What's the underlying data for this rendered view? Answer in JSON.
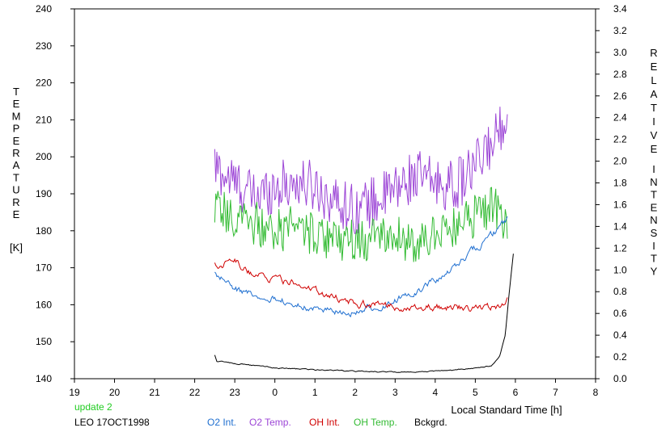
{
  "chart_data": {
    "type": "line",
    "xlabel": "Local Standard Time [h]",
    "ylabel_left": [
      "T",
      "E",
      "M",
      "P",
      "E",
      "R",
      "A",
      "T",
      "U",
      "R",
      "E"
    ],
    "ylabel_left_unit": "[K]",
    "ylabel_right_line1": [
      "R",
      "E",
      "L",
      "A",
      "T",
      "I",
      "V",
      "E"
    ],
    "ylabel_right_line2": [
      "I",
      "N",
      "T",
      "E",
      "N",
      "S",
      "I",
      "T",
      "Y"
    ],
    "x_ticks": [
      "19",
      "20",
      "21",
      "22",
      "23",
      "0",
      "1",
      "2",
      "3",
      "4",
      "5",
      "6",
      "7",
      "8"
    ],
    "y_left_ticks": [
      "240",
      "230",
      "220",
      "210",
      "200",
      "190",
      "180",
      "170",
      "160",
      "150",
      "140"
    ],
    "y_right_ticks": [
      "3.4",
      "3.2",
      "3.0",
      "2.8",
      "2.6",
      "2.4",
      "2.2",
      "2.0",
      "1.8",
      "1.6",
      "1.4",
      "1.2",
      "1.0",
      "0.8",
      "0.6",
      "0.4",
      "0.2",
      "0.0"
    ],
    "ylim_left": [
      140,
      240
    ],
    "ylim_right": [
      0.0,
      3.4
    ],
    "xlim_hours_after_1900": [
      0,
      13
    ],
    "status_label": "update 2",
    "station_label": "LEO 17OCT1998",
    "colors": {
      "o2_int": "#1f6fd0",
      "o2_temp": "#9c45d6",
      "oh_int": "#d00000",
      "oh_temp": "#33bb33",
      "bckgrd": "#000000",
      "status": "#22cc22"
    },
    "series": [
      {
        "name": "O2 Temp.",
        "axis": "left",
        "color": "#9c45d6",
        "x": [
          3.5,
          4.0,
          4.5,
          5.0,
          5.5,
          6.0,
          6.5,
          7.0,
          7.5,
          8.0,
          8.5,
          9.0,
          9.5,
          10.0,
          10.5,
          10.8
        ],
        "y": [
          197,
          193,
          189,
          192,
          193,
          192,
          188,
          186,
          188,
          191,
          195,
          193,
          192,
          197,
          205,
          213
        ],
        "amplitude": 7
      },
      {
        "name": "OH Temp.",
        "axis": "left",
        "color": "#33bb33",
        "x": [
          3.5,
          4.0,
          4.5,
          5.0,
          5.5,
          6.0,
          6.5,
          7.0,
          7.5,
          8.0,
          8.5,
          9.0,
          9.5,
          10.0,
          10.5,
          10.8
        ],
        "y": [
          186,
          183,
          182,
          180,
          181,
          179,
          178,
          177,
          178,
          178,
          177,
          179,
          181,
          184,
          187,
          182
        ],
        "amplitude": 6
      },
      {
        "name": "O2 Int.",
        "axis": "right",
        "color": "#1f6fd0",
        "x": [
          3.5,
          4.0,
          4.5,
          5.0,
          5.5,
          6.0,
          6.5,
          7.0,
          7.5,
          8.0,
          8.5,
          9.0,
          9.5,
          10.0,
          10.5,
          10.8
        ],
        "y": [
          0.98,
          0.82,
          0.78,
          0.75,
          0.68,
          0.64,
          0.62,
          0.62,
          0.65,
          0.72,
          0.8,
          0.9,
          1.02,
          1.2,
          1.35,
          1.45
        ],
        "amplitude": 0.025
      },
      {
        "name": "OH Int.",
        "axis": "right",
        "color": "#d00000",
        "x": [
          3.5,
          4.0,
          4.5,
          5.0,
          5.5,
          6.0,
          6.5,
          7.0,
          7.5,
          8.0,
          8.5,
          9.0,
          9.5,
          10.0,
          10.5,
          10.8
        ],
        "y": [
          1.05,
          1.08,
          0.95,
          0.92,
          0.88,
          0.8,
          0.75,
          0.7,
          0.68,
          0.66,
          0.67,
          0.66,
          0.65,
          0.65,
          0.66,
          0.72
        ],
        "amplitude": 0.025
      },
      {
        "name": "Bckgrd.",
        "axis": "right",
        "color": "#000000",
        "x": [
          3.5,
          3.55,
          3.8,
          4.5,
          5.0,
          6.0,
          7.0,
          8.0,
          9.0,
          9.5,
          10.0,
          10.4,
          10.6,
          10.75,
          10.85,
          10.95
        ],
        "y": [
          0.22,
          0.16,
          0.15,
          0.12,
          0.1,
          0.08,
          0.07,
          0.06,
          0.07,
          0.08,
          0.1,
          0.12,
          0.2,
          0.4,
          0.8,
          1.15
        ],
        "amplitude": 0.004
      }
    ]
  }
}
